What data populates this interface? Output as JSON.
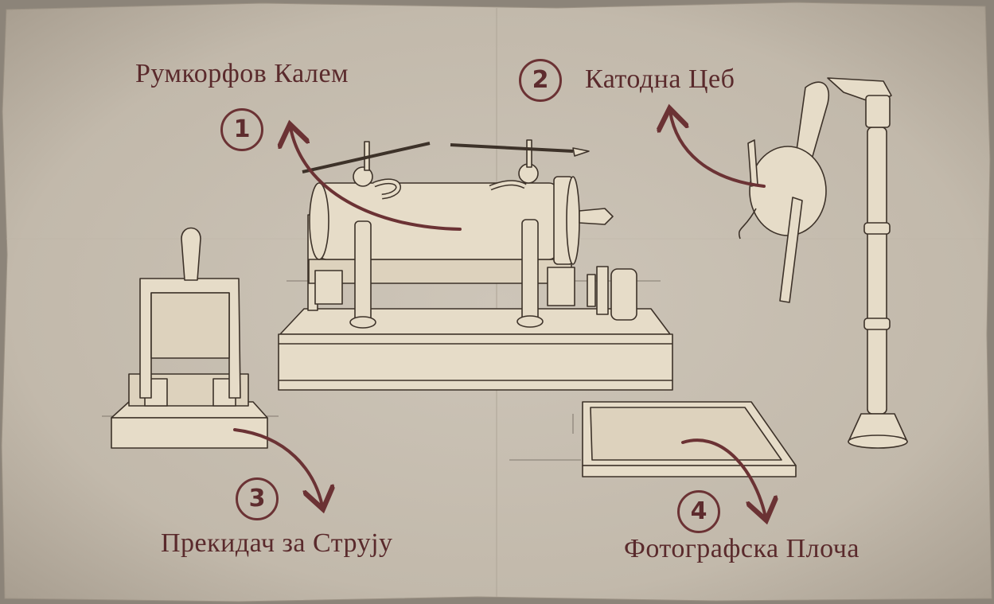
{
  "labels": {
    "coil": "Румкорфов Калем",
    "tube": "Катодна Цеб",
    "switch": "Прекидач за Струју",
    "plate": "Фотографска Плоча"
  },
  "numbers": {
    "one": "1",
    "two": "2",
    "three": "3",
    "four": "4"
  },
  "colors": {
    "paper": "#c9c0b3",
    "object_fill": "#e6dcc8",
    "ink": "#3d3229",
    "arrow": "#6b3234"
  }
}
